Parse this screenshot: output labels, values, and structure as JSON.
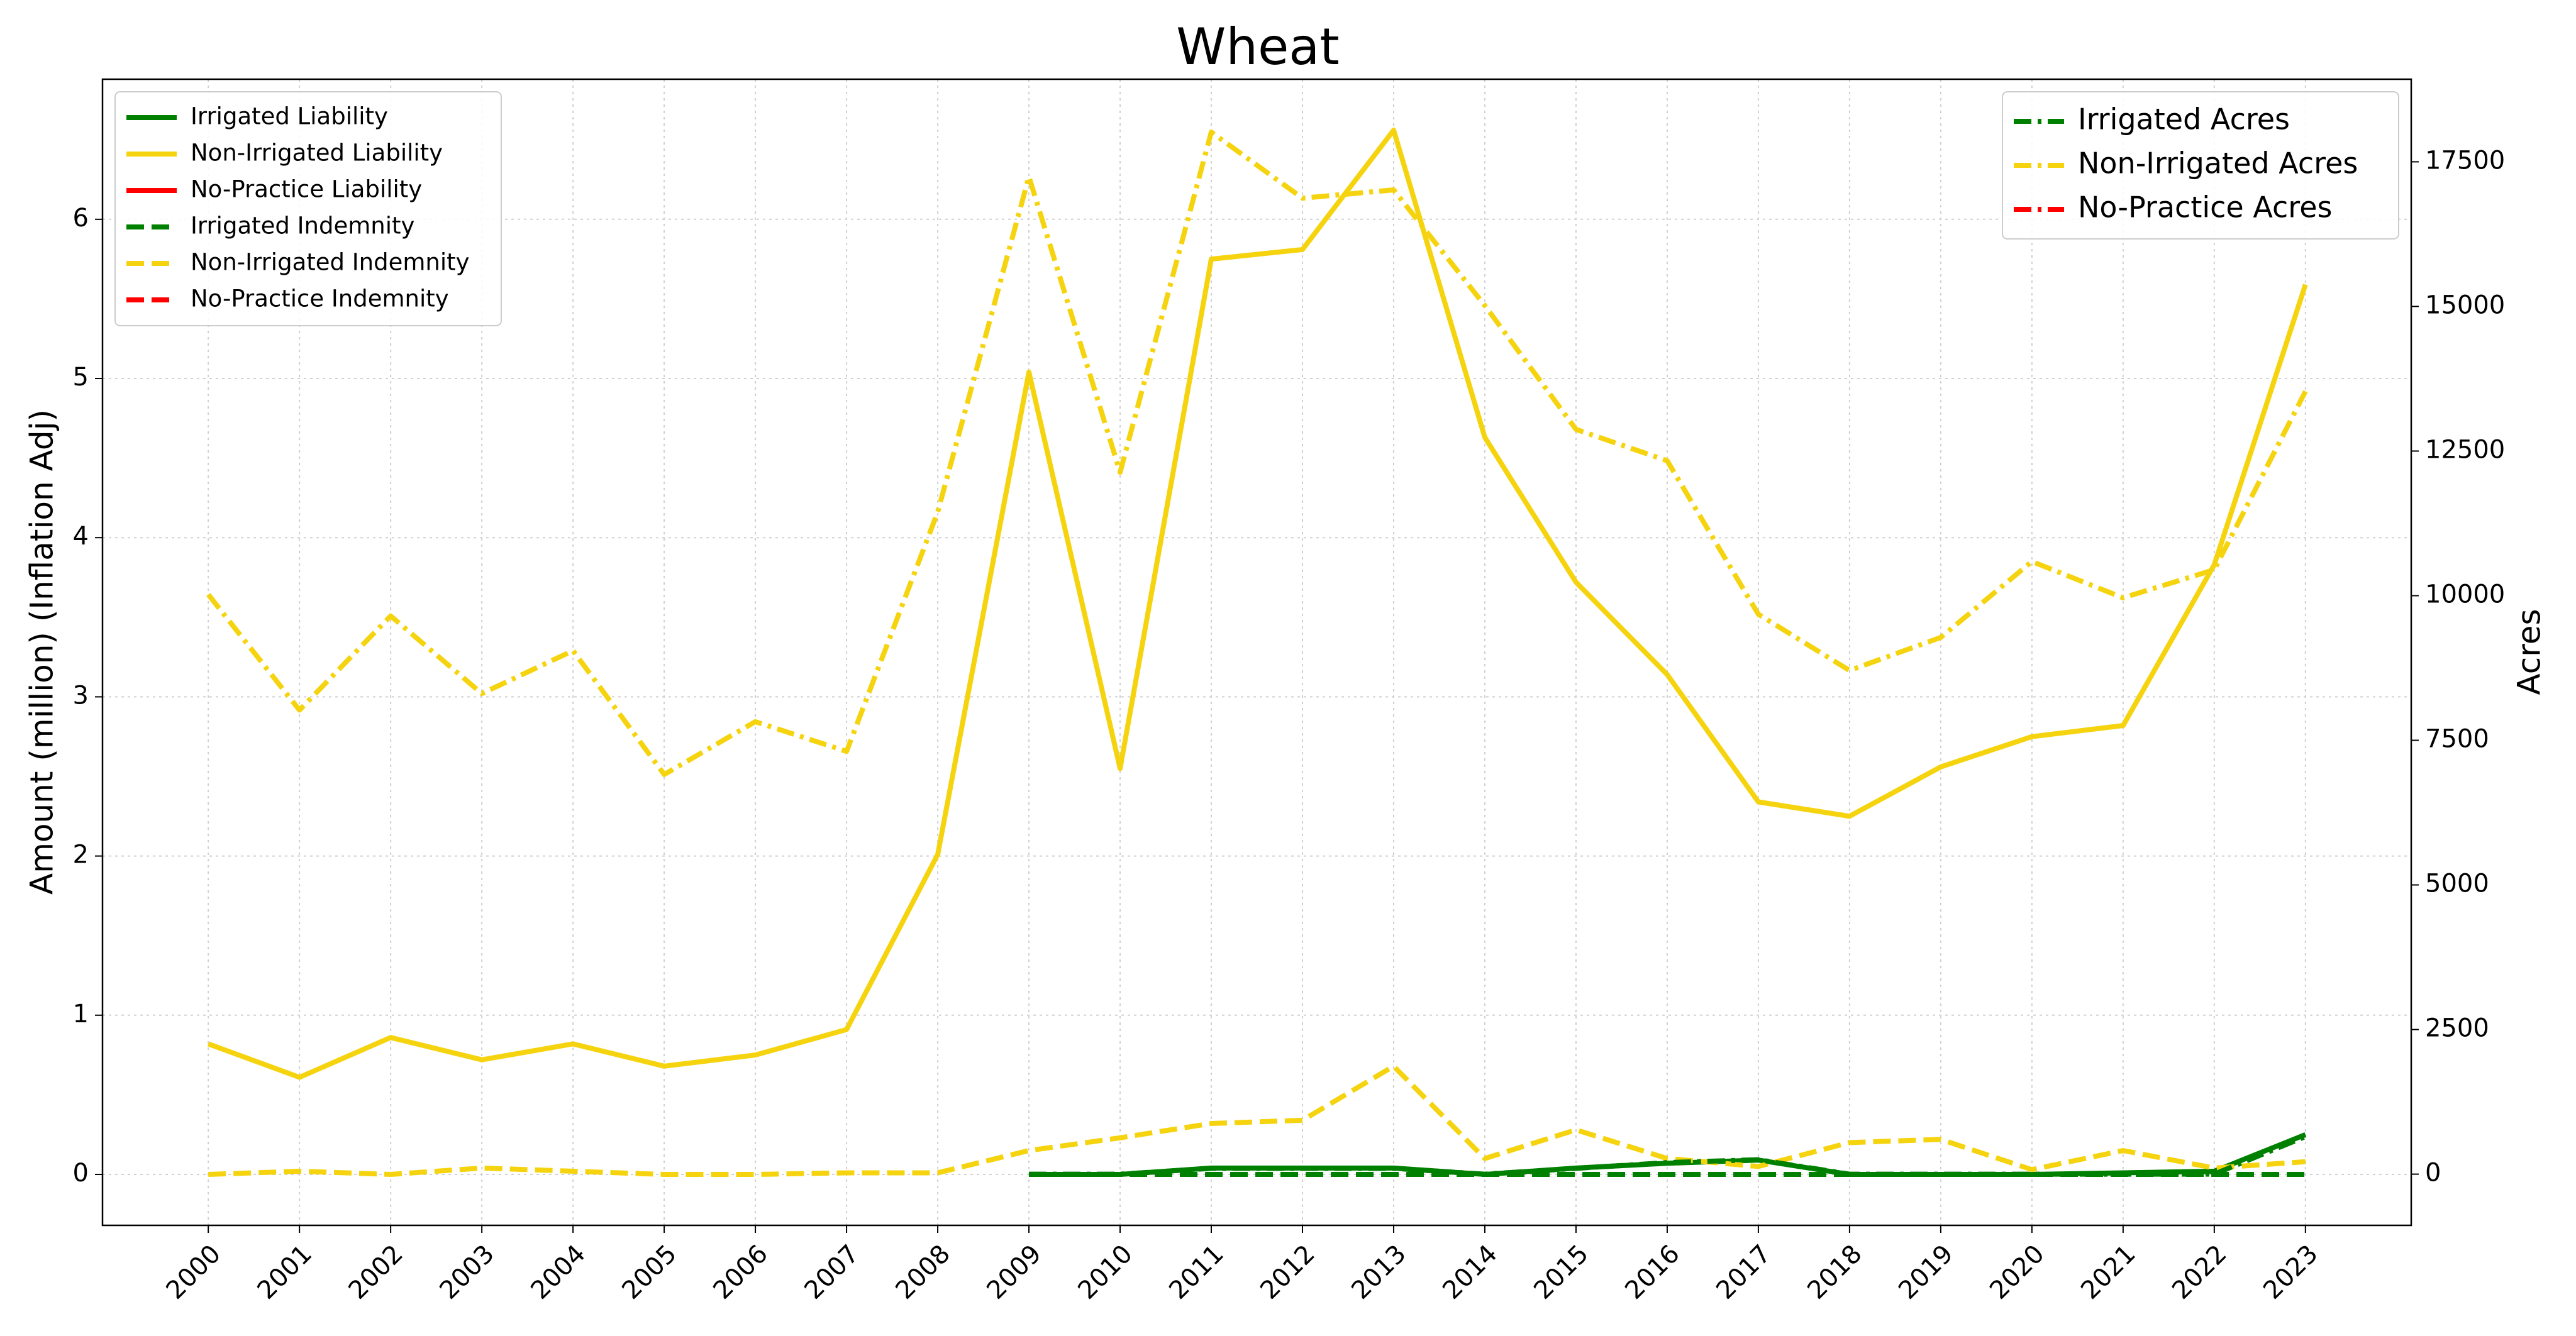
{
  "chart_data": {
    "type": "line",
    "title": "Wheat",
    "ylabel": "Amount (million) (Inflation Adj)",
    "y2label": "Acres",
    "x": [
      2000,
      2001,
      2002,
      2003,
      2004,
      2005,
      2006,
      2007,
      2008,
      2009,
      2010,
      2011,
      2012,
      2013,
      2014,
      2015,
      2016,
      2017,
      2018,
      2019,
      2020,
      2021,
      2022,
      2023
    ],
    "xlim": [
      1998.84,
      2024.16
    ],
    "xticks": [
      2000,
      2001,
      2002,
      2003,
      2004,
      2005,
      2006,
      2007,
      2008,
      2009,
      2010,
      2011,
      2012,
      2013,
      2014,
      2015,
      2016,
      2017,
      2018,
      2019,
      2020,
      2021,
      2022,
      2023
    ],
    "ylim": [
      -0.32,
      6.88
    ],
    "yticks": [
      0,
      1,
      2,
      3,
      4,
      5,
      6
    ],
    "y2lim": [
      -885,
      18928
    ],
    "y2ticks": [
      0,
      2500,
      5000,
      7500,
      10000,
      12500,
      15000,
      17500
    ],
    "grid": true,
    "legend": "upper left",
    "legend2": "upper right",
    "series": [
      {
        "name": "Irrigated Liability",
        "color": "#008000",
        "style": "solid",
        "axis": "y",
        "values": [
          null,
          null,
          null,
          null,
          null,
          null,
          null,
          null,
          null,
          0,
          0,
          0.04,
          0.04,
          0.04,
          0,
          0.04,
          0.07,
          0.09,
          0,
          0,
          0,
          0.01,
          0.02,
          0.25
        ]
      },
      {
        "name": "Non-Irrigated Liability",
        "color": "#f5d40f",
        "style": "solid",
        "axis": "y",
        "values": [
          0.82,
          0.61,
          0.86,
          0.72,
          0.82,
          0.68,
          0.75,
          0.91,
          2.01,
          5.04,
          2.55,
          5.75,
          5.81,
          6.56,
          4.63,
          3.72,
          3.14,
          2.34,
          2.25,
          2.56,
          2.75,
          2.82,
          3.83,
          5.59
        ]
      },
      {
        "name": "No-Practice Liability",
        "color": "#ff0000",
        "style": "solid",
        "axis": "y",
        "values": [
          null,
          null,
          null,
          null,
          null,
          null,
          null,
          null,
          null,
          null,
          null,
          null,
          null,
          null,
          null,
          null,
          null,
          null,
          null,
          null,
          null,
          null,
          null,
          null
        ]
      },
      {
        "name": "Irrigated Indemnity",
        "color": "#008000",
        "style": "dashed",
        "axis": "y",
        "values": [
          null,
          null,
          null,
          null,
          null,
          null,
          null,
          null,
          null,
          0,
          0,
          0,
          0,
          0,
          0,
          0,
          0,
          0,
          0,
          0,
          0,
          0,
          0,
          0
        ]
      },
      {
        "name": "Non-Irrigated Indemnity",
        "color": "#f5d40f",
        "style": "dashed",
        "axis": "y",
        "values": [
          0,
          0.02,
          0,
          0.04,
          0.02,
          0,
          0,
          0.01,
          0.01,
          0.15,
          0.23,
          0.32,
          0.34,
          0.68,
          0.1,
          0.28,
          0.1,
          0.05,
          0.2,
          0.22,
          0.03,
          0.15,
          0.04,
          0.08
        ]
      },
      {
        "name": "No-Practice Indemnity",
        "color": "#ff0000",
        "style": "dashed",
        "axis": "y",
        "values": [
          null,
          null,
          null,
          null,
          null,
          null,
          null,
          null,
          null,
          null,
          null,
          null,
          null,
          null,
          null,
          null,
          null,
          null,
          null,
          null,
          null,
          null,
          null,
          null
        ]
      },
      {
        "name": "Irrigated Acres",
        "color": "#008000",
        "style": "dashdot",
        "axis": "y2",
        "values": [
          null,
          null,
          null,
          null,
          null,
          null,
          null,
          null,
          null,
          0,
          0,
          100,
          100,
          100,
          0,
          100,
          200,
          250,
          0,
          0,
          0,
          0,
          0,
          650
        ]
      },
      {
        "name": "Non-Irrigated Acres",
        "color": "#f5d40f",
        "style": "dashdot",
        "axis": "y2",
        "values": [
          10020,
          8022,
          9650,
          8308,
          9050,
          6909,
          7822,
          7308,
          11448,
          17243,
          12133,
          18014,
          16872,
          17015,
          15016,
          12875,
          12333,
          9678,
          8707,
          9278,
          10591,
          9963,
          10449,
          13532
        ]
      },
      {
        "name": "No-Practice Acres",
        "color": "#ff0000",
        "style": "dashdot",
        "axis": "y2",
        "values": [
          null,
          null,
          null,
          null,
          null,
          null,
          null,
          null,
          null,
          null,
          null,
          null,
          null,
          null,
          null,
          null,
          null,
          null,
          null,
          null,
          null,
          null,
          null,
          null
        ]
      }
    ]
  }
}
